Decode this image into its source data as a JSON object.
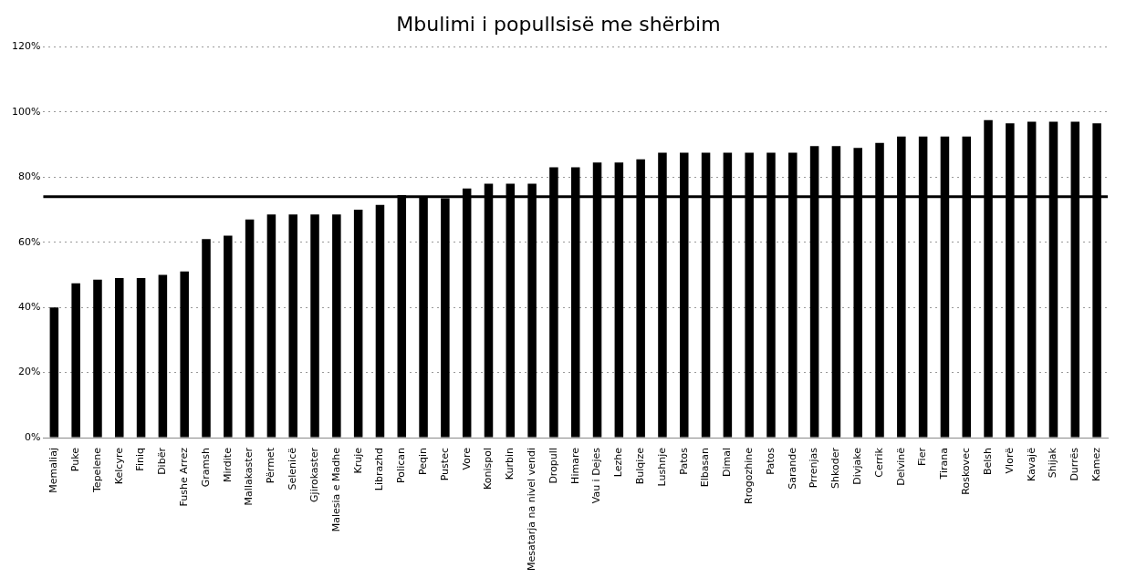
{
  "chart_data": {
    "type": "bar",
    "title": "Mbulimi i popullsisë me shërbim",
    "categories": [
      "Memaliaj",
      "Puke",
      "Tepelene",
      "Kelcyre",
      "Finiq",
      "Dibër",
      "Fushe Arrez",
      "Gramsh",
      "Mirdite",
      "Mallakaster",
      "Përmet",
      "Selenicë",
      "Gjirokaster",
      "Malesia e Madhe",
      "Kruje",
      "Librazhd",
      "Polican",
      "Peqin",
      "Pustec",
      "Vore",
      "Konispol",
      "Kurbin",
      "Mesatarja na nivel vendi",
      "Dropull",
      "Himare",
      "Vau i Dejes",
      "Lezhe",
      "Bulqize",
      "Lushnje",
      "Patos",
      "Elbasan",
      "Dimal",
      "Rrogozhine",
      "Patos",
      "Sarande",
      "Prrenjas",
      "Shkoder",
      "Divjake",
      "Cerrik",
      "Delvinë",
      "Fier",
      "Tirana",
      "Roskovec",
      "Belsh",
      "Vlorë",
      "Kavajë",
      "Shijak",
      "Durrës",
      "Kamez"
    ],
    "values": [
      40,
      47.4,
      48.5,
      49,
      49,
      50,
      51,
      61,
      62,
      67,
      68.5,
      68.5,
      68.5,
      68.5,
      70,
      71.5,
      74.5,
      74,
      73.5,
      76.5,
      78,
      78,
      78,
      83,
      83,
      84.5,
      84.5,
      85.5,
      87.5,
      87.5,
      87.5,
      87.5,
      87.5,
      87.5,
      87.5,
      89.5,
      89.5,
      89,
      90.5,
      92.5,
      92.5,
      92.5,
      92.5,
      97.5,
      96.5,
      97,
      97,
      97,
      96.5
    ],
    "color": "#000000",
    "ylim": [
      0,
      120
    ],
    "yticks": [
      {
        "value": 0,
        "label": "0%"
      },
      {
        "value": 20,
        "label": "20%"
      },
      {
        "value": 40,
        "label": "40%"
      },
      {
        "value": 60,
        "label": "60%"
      },
      {
        "value": 80,
        "label": "80%"
      },
      {
        "value": 100,
        "label": "100%"
      },
      {
        "value": 120,
        "label": "120%"
      }
    ],
    "ref_lines": [
      {
        "axis": "y",
        "value": 74,
        "color": "#000000"
      }
    ],
    "grid": "y",
    "legend": false
  }
}
